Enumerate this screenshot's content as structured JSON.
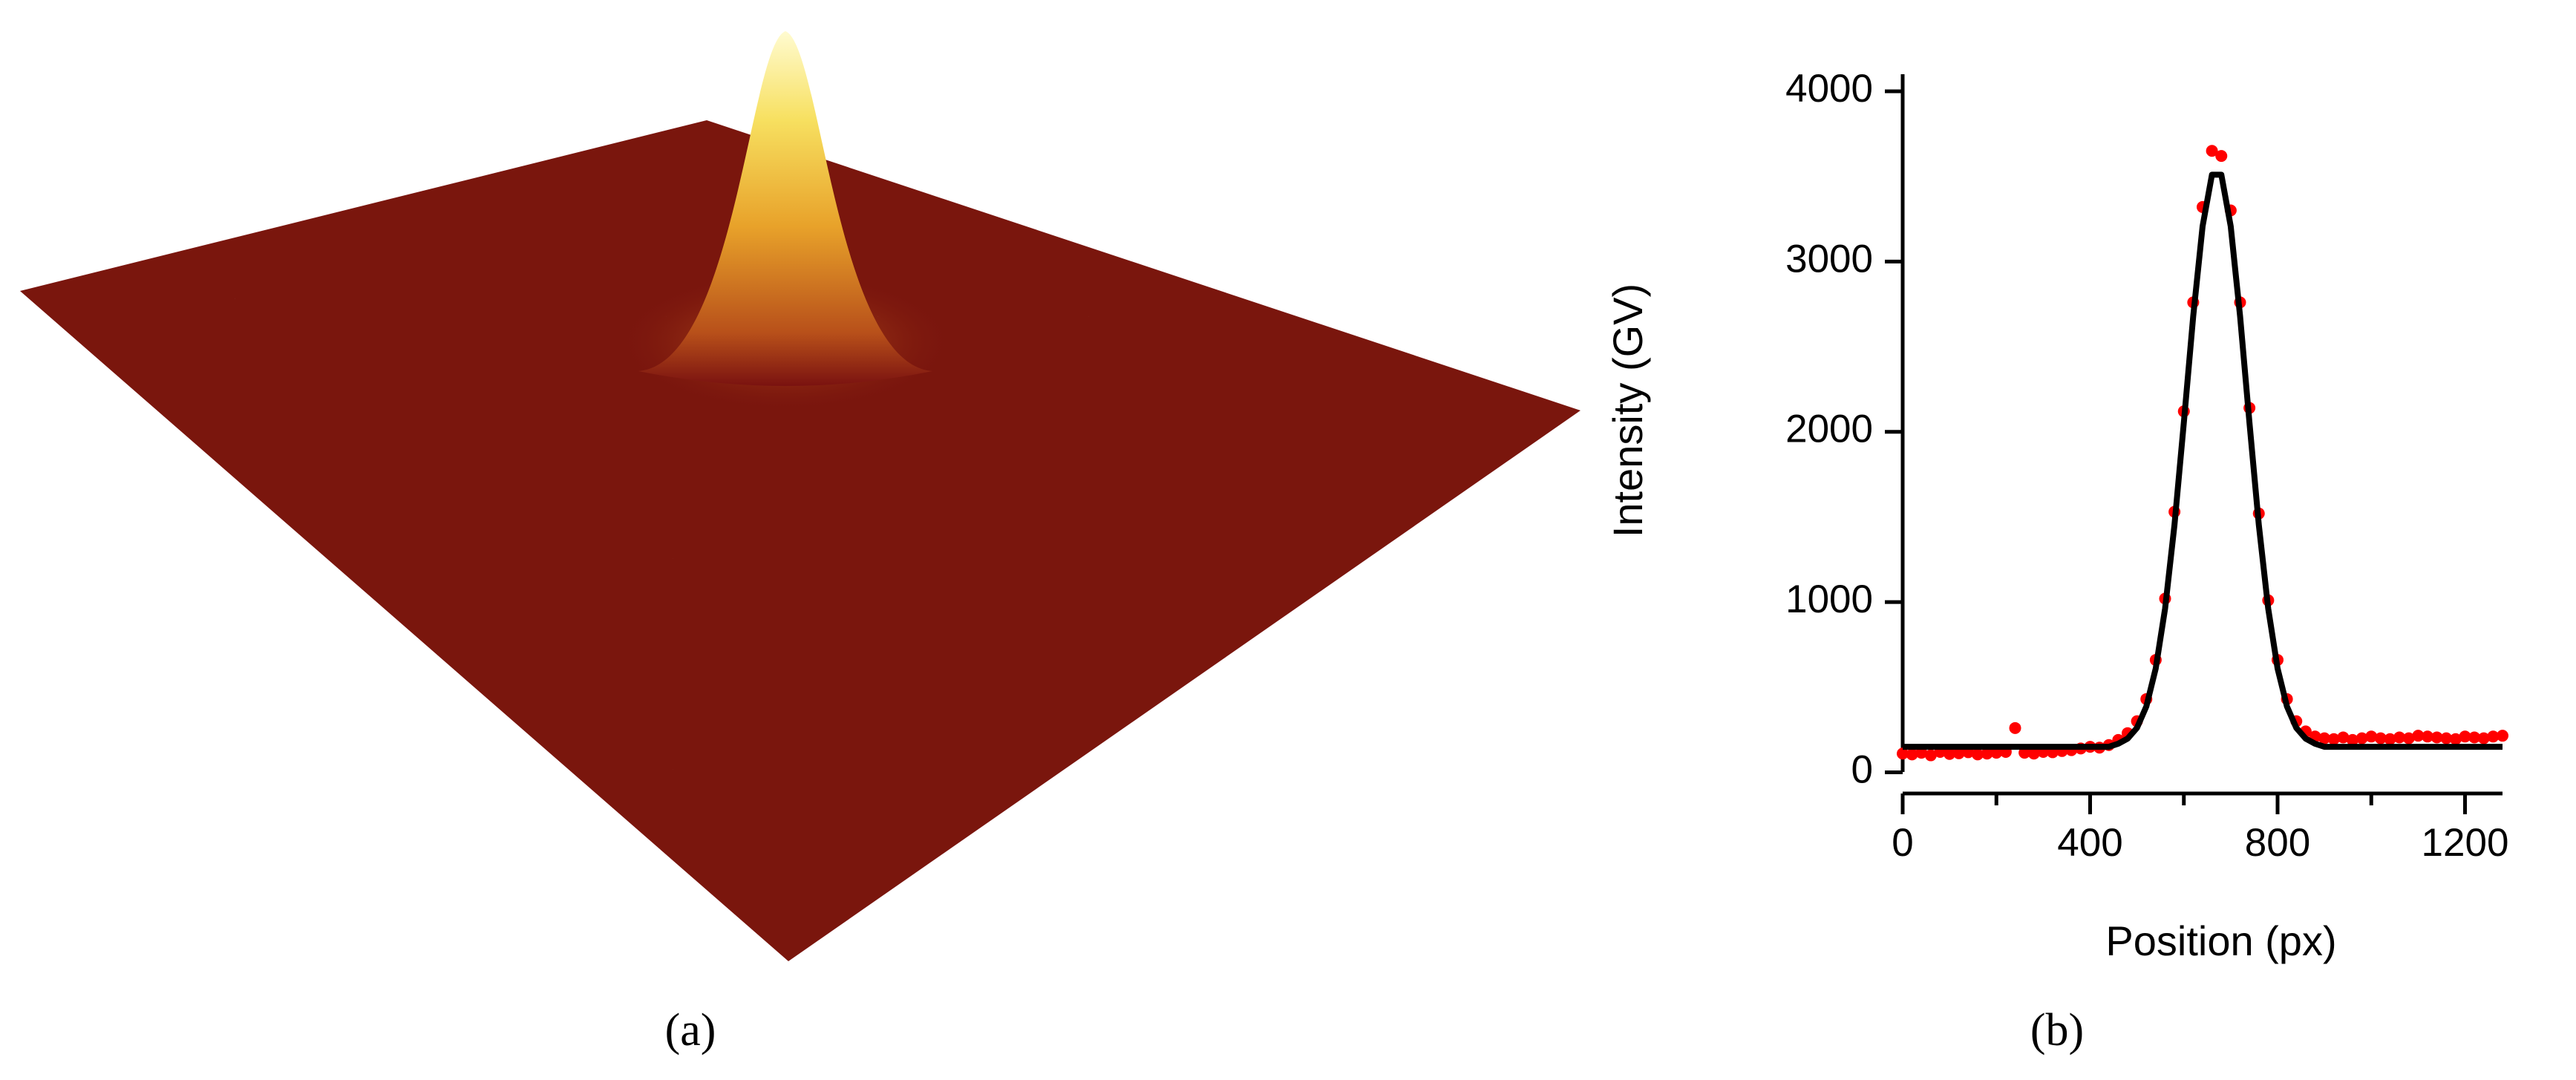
{
  "panel_labels": [
    "(a)",
    "(b)"
  ],
  "chart_data": {
    "type": "scatter",
    "x_label": "Position (px)",
    "y_label": "Intensity (GV)",
    "x": [
      0,
      20,
      40,
      60,
      80,
      100,
      120,
      140,
      160,
      180,
      200,
      220,
      240,
      260,
      280,
      300,
      320,
      340,
      360,
      380,
      400,
      420,
      440,
      460,
      480,
      500,
      520,
      540,
      560,
      580,
      600,
      620,
      640,
      660,
      680,
      700,
      720,
      740,
      760,
      780,
      800,
      820,
      840,
      860,
      880,
      900,
      920,
      940,
      960,
      980,
      1000,
      1020,
      1040,
      1060,
      1080,
      1100,
      1120,
      1140,
      1160,
      1180,
      1200,
      1220,
      1240,
      1260,
      1280
    ],
    "series": [
      {
        "mode": "markers",
        "color": "#ff0000",
        "values": [
          110,
          105,
          115,
          100,
          120,
          108,
          112,
          118,
          105,
          110,
          115,
          120,
          260,
          115,
          110,
          120,
          118,
          125,
          130,
          140,
          150,
          145,
          160,
          190,
          230,
          300,
          430,
          660,
          1020,
          1530,
          2120,
          2760,
          3320,
          3650,
          3620,
          3300,
          2760,
          2140,
          1520,
          1010,
          660,
          430,
          300,
          240,
          210,
          200,
          195,
          205,
          190,
          200,
          210,
          200,
          195,
          205,
          200,
          215,
          210,
          205,
          200,
          195,
          210,
          205,
          200,
          210,
          215
        ]
      },
      {
        "mode": "lines",
        "color": "#000000",
        "values": [
          150,
          150,
          150,
          150,
          150,
          150,
          150,
          150,
          150,
          150,
          150,
          150,
          150,
          150,
          150,
          150,
          150,
          150,
          150,
          150,
          150,
          150,
          150,
          168,
          198,
          261,
          387,
          610,
          962,
          1453,
          2054,
          2679,
          3207,
          3510,
          3510,
          3207,
          2679,
          2054,
          1453,
          962,
          610,
          387,
          261,
          198,
          168,
          150,
          150,
          150,
          150,
          150,
          150,
          150,
          150,
          150,
          150,
          150,
          150,
          150,
          150,
          150,
          150,
          150,
          150,
          150,
          150
        ]
      }
    ],
    "xlim": [
      0,
      1280
    ],
    "ylim": [
      -120,
      4100
    ],
    "xticks": [
      0,
      400,
      800,
      1200
    ],
    "xminorticks": [
      200,
      600,
      1000
    ],
    "yticks": [
      0,
      1000,
      2000,
      3000,
      4000
    ]
  }
}
